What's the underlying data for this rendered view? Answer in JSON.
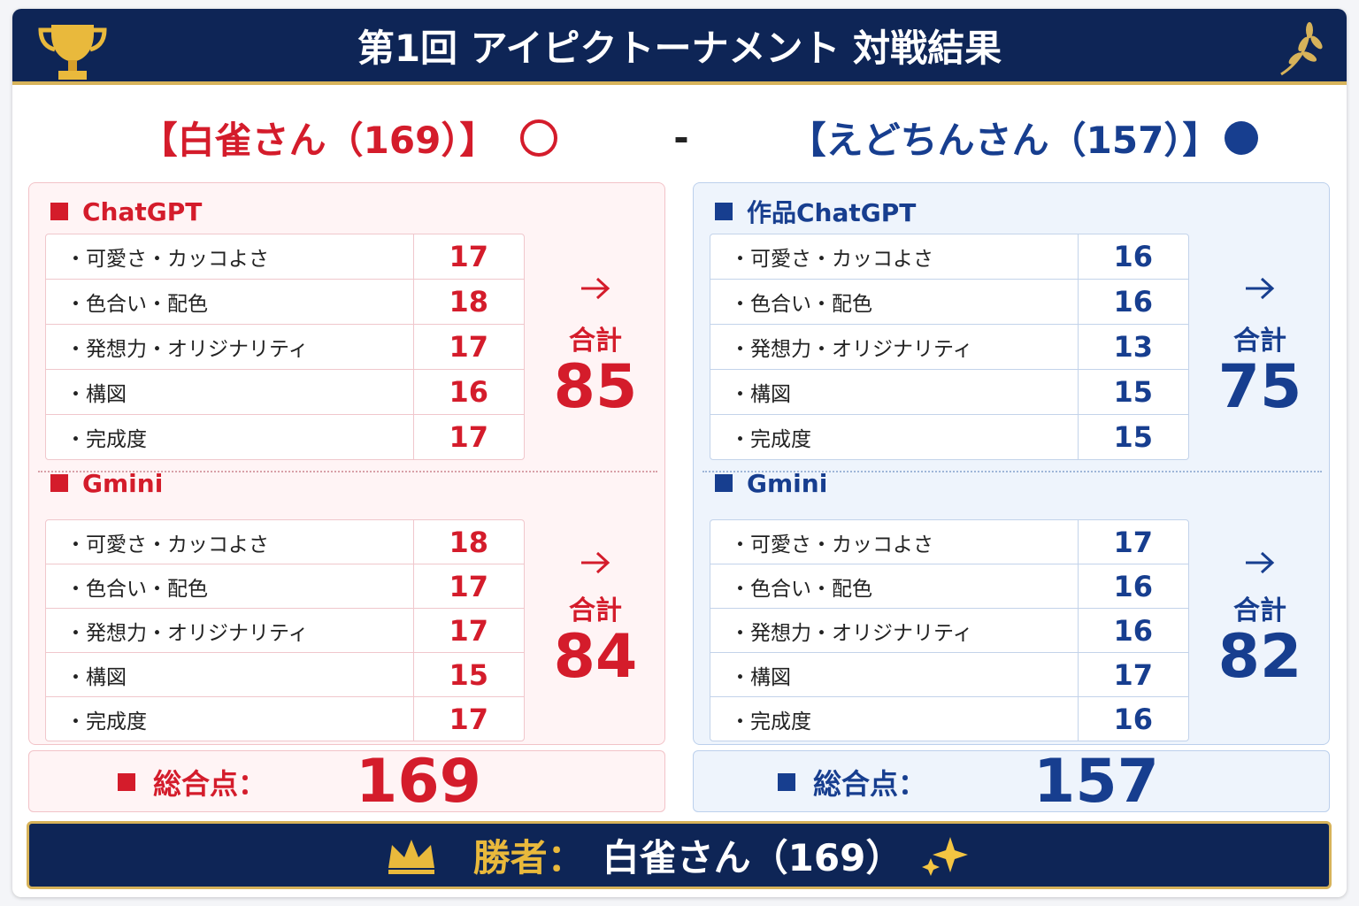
{
  "header": {
    "title": "第1回 アイピクトーナメント 対戦結果"
  },
  "matchup": {
    "left": "【白雀さん（169）】",
    "separator": "-",
    "right": "【えどちんさん（157）】"
  },
  "players": [
    {
      "sections": [
        {
          "name": "ChatGPT",
          "rows": [
            [
              "・可愛さ・カッコよさ",
              17
            ],
            [
              "・色合い・配色",
              18
            ],
            [
              "・発想力・オリジナリティ",
              17
            ],
            [
              "・構図",
              16
            ],
            [
              "・完成度",
              17
            ]
          ],
          "total_label": "合計",
          "total": 85
        },
        {
          "name": "Gmini",
          "rows": [
            [
              "・可愛さ・カッコよさ",
              18
            ],
            [
              "・色合い・配色",
              17
            ],
            [
              "・発想力・オリジナリティ",
              17
            ],
            [
              "・構図",
              15
            ],
            [
              "・完成度",
              17
            ]
          ],
          "total_label": "合計",
          "total": 84
        }
      ],
      "grand_label": "総合点：",
      "grand_total": 169
    },
    {
      "sections": [
        {
          "name": "作品ChatGPT",
          "rows": [
            [
              "・可愛さ・カッコよさ",
              16
            ],
            [
              "・色合い・配色",
              16
            ],
            [
              "・発想力・オリジナリティ",
              13
            ],
            [
              "・構図",
              15
            ],
            [
              "・完成度",
              15
            ]
          ],
          "total_label": "合計",
          "total": 75
        },
        {
          "name": "Gmini",
          "rows": [
            [
              "・可愛さ・カッコよさ",
              17
            ],
            [
              "・色合い・配色",
              16
            ],
            [
              "・発想力・オリジナリティ",
              16
            ],
            [
              "・構図",
              17
            ],
            [
              "・完成度",
              16
            ]
          ],
          "total_label": "合計",
          "total": 82
        }
      ],
      "grand_label": "総合点：",
      "grand_total": 157
    }
  ],
  "footer": {
    "label": "勝者：",
    "winner": "白雀さん（169）"
  }
}
